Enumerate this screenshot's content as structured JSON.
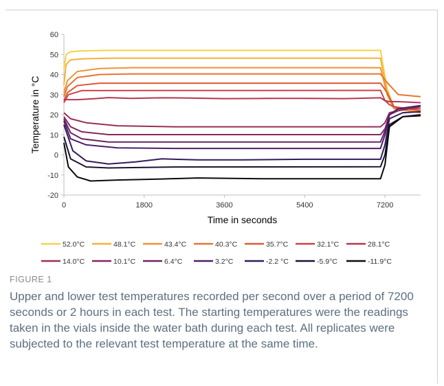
{
  "figure": {
    "label": "FIGURE 1",
    "caption": "Upper and lower test temperatures recorded per second over a period of 7200 seconds or 2 hours in each test. The starting temperatures were the readings taken in the vials inside the water bath during each test. All replicates were subjected to the relevant test temperature at the same time."
  },
  "chart_data": {
    "type": "line",
    "title": "",
    "xlabel": "Time in seconds",
    "ylabel": "Temperature in °C",
    "xlim": [
      0,
      8000
    ],
    "ylim": [
      -20,
      60
    ],
    "xticks": [
      0,
      1800,
      3600,
      5400,
      7200
    ],
    "yticks": [
      -20,
      -10,
      0,
      10,
      20,
      30,
      40,
      50,
      60
    ],
    "grid": false,
    "legend_position": "bottom",
    "series": [
      {
        "name": "52.0°C",
        "color": "#f3d24a",
        "x": [
          0,
          50,
          150,
          400,
          1000,
          7100,
          7250,
          7400,
          8000
        ],
        "values": [
          43,
          50,
          51.3,
          51.8,
          52,
          52,
          33,
          24,
          22
        ]
      },
      {
        "name": "48.1°C",
        "color": "#f5b13a",
        "x": [
          0,
          50,
          150,
          400,
          1000,
          7100,
          7250,
          7400,
          8000
        ],
        "values": [
          35,
          45,
          47.3,
          47.8,
          48.1,
          48.1,
          31,
          23,
          21.5
        ]
      },
      {
        "name": "43.4°C",
        "color": "#ee9433",
        "x": [
          0,
          80,
          300,
          800,
          1500,
          7100,
          7250,
          7400,
          8000
        ],
        "values": [
          31,
          37,
          41.5,
          43,
          43.4,
          43.4,
          30,
          23,
          21
        ]
      },
      {
        "name": "40.3°C",
        "color": "#e67530",
        "x": [
          0,
          80,
          300,
          800,
          1500,
          7100,
          7250,
          7500,
          8000
        ],
        "values": [
          29,
          34,
          38.5,
          40,
          40.3,
          40.3,
          36,
          30,
          29
        ]
      },
      {
        "name": "35.7°C",
        "color": "#dc5a34",
        "x": [
          0,
          80,
          300,
          800,
          7100,
          7250,
          7400,
          8000
        ],
        "values": [
          27,
          31,
          34.5,
          35.7,
          35.7,
          31,
          24,
          22
        ]
      },
      {
        "name": "32.1°C",
        "color": "#cc4245",
        "x": [
          0,
          100,
          400,
          7000,
          7100,
          7200,
          7300,
          7500,
          8000
        ],
        "values": [
          26,
          30,
          32,
          32.1,
          32.1,
          27,
          25,
          23,
          23
        ]
      },
      {
        "name": "28.1°C",
        "color": "#b33750",
        "x": [
          0,
          300,
          700,
          1000,
          1500,
          2200,
          2800,
          3600,
          4500,
          5400,
          6300,
          7100,
          7200,
          7300,
          7500,
          8000
        ],
        "values": [
          27.5,
          27.5,
          28,
          28.5,
          28.1,
          28.4,
          28.3,
          28,
          28.1,
          28.1,
          28,
          28.4,
          27,
          26.5,
          26.5,
          26
        ]
      },
      {
        "name": "14.0°C",
        "color": "#9a2d58",
        "x": [
          0,
          150,
          500,
          1200,
          2500,
          7100,
          7200,
          7300,
          7500,
          8000
        ],
        "values": [
          21,
          18,
          16,
          14.5,
          14,
          14,
          16,
          21,
          22,
          24
        ]
      },
      {
        "name": "10.1°C",
        "color": "#83275f",
        "x": [
          0,
          150,
          400,
          1000,
          7100,
          7200,
          7300,
          7500,
          8000
        ],
        "values": [
          19,
          14,
          11.5,
          10.1,
          10.1,
          13,
          20,
          22,
          24
        ]
      },
      {
        "name": "6.4°C",
        "color": "#6c2467",
        "x": [
          0,
          150,
          400,
          1000,
          7100,
          7200,
          7300,
          7500,
          8000
        ],
        "values": [
          18,
          11,
          8,
          6.4,
          6.4,
          12,
          20,
          23,
          24.5
        ]
      },
      {
        "name": "3.2°C",
        "color": "#4e1e6a",
        "x": [
          0,
          150,
          500,
          1200,
          2500,
          7100,
          7200,
          7300,
          7500,
          8000
        ],
        "values": [
          17,
          8,
          5,
          3.5,
          3.2,
          3.2,
          10,
          20,
          23,
          24.5
        ]
      },
      {
        "name": "-2.2 °C",
        "color": "#341a5b",
        "x": [
          0,
          200,
          500,
          1000,
          1600,
          2200,
          3000,
          4000,
          5400,
          7100,
          7200,
          7300,
          7600,
          8000
        ],
        "values": [
          15,
          2,
          -3,
          -4.5,
          -3.5,
          -2,
          -2.5,
          -2.5,
          -2.2,
          -2.2,
          5,
          18,
          21,
          21.5
        ]
      },
      {
        "name": "-5.9°C",
        "color": "#1b1233",
        "x": [
          0,
          150,
          500,
          1000,
          2500,
          7100,
          7200,
          7300,
          7600,
          8000
        ],
        "values": [
          9,
          -2,
          -6,
          -6.5,
          -6,
          -5.9,
          0,
          15,
          19,
          20
        ]
      },
      {
        "name": "-11.9°C",
        "color": "#0a0a0d",
        "x": [
          0,
          100,
          300,
          600,
          1200,
          2200,
          3000,
          4500,
          7100,
          7200,
          7300,
          7600,
          8000
        ],
        "values": [
          6,
          -6,
          -11,
          -13,
          -12.5,
          -12,
          -11.5,
          -11.9,
          -11.9,
          -5,
          14,
          19,
          19.5
        ]
      }
    ]
  }
}
